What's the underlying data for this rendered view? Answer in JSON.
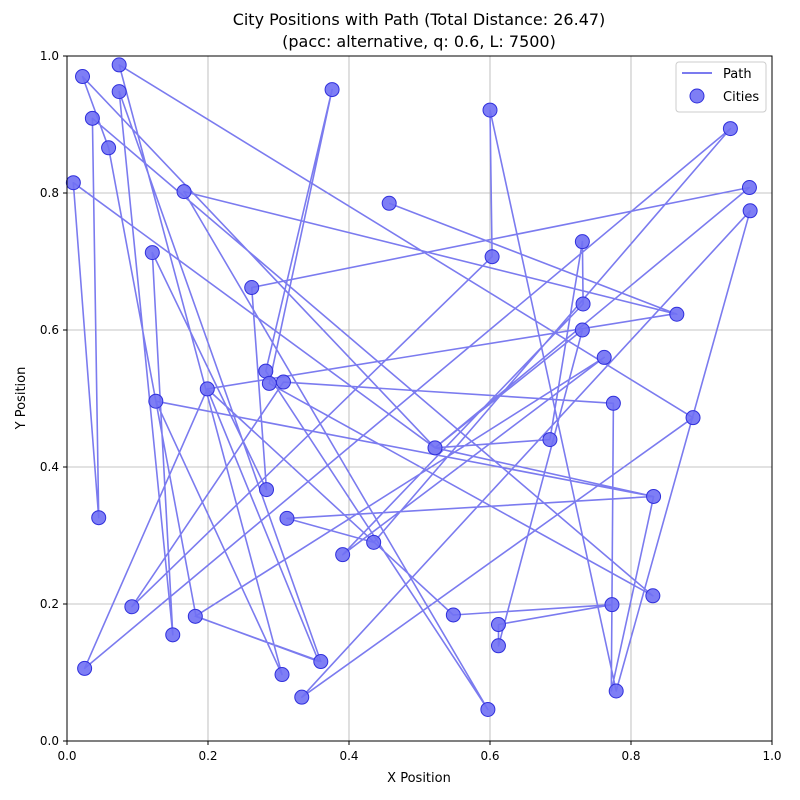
{
  "chart_data": {
    "type": "scatter",
    "title_line1": "City Positions with Path (Total Distance: 26.47)",
    "title_line2": "(pacc: alternative, q: 0.6, L: 7500)",
    "xlabel": "X Position",
    "ylabel": "Y Position",
    "xlim": [
      0,
      1
    ],
    "ylim": [
      0,
      1
    ],
    "xticks": [
      "0.0",
      "0.2",
      "0.4",
      "0.6",
      "0.8",
      "1.0"
    ],
    "yticks": [
      "0.0",
      "0.2",
      "0.4",
      "0.6",
      "0.8",
      "1.0"
    ],
    "grid": true,
    "legend_position": "top-right",
    "legend": {
      "path": "Path",
      "cities": "Cities"
    },
    "colors": {
      "path": "#7b7bef",
      "cities": "#7070f4",
      "city_edge": "#2f2fdc"
    },
    "path": [
      [
        0.457,
        0.785
      ],
      [
        0.865,
        0.623
      ],
      [
        0.166,
        0.802
      ],
      [
        0.597,
        0.046
      ],
      [
        0.282,
        0.54
      ],
      [
        0.376,
        0.951
      ],
      [
        0.287,
        0.522
      ],
      [
        0.831,
        0.212
      ],
      [
        0.036,
        0.909
      ],
      [
        0.045,
        0.326
      ],
      [
        0.009,
        0.815
      ],
      [
        0.522,
        0.428
      ],
      [
        0.685,
        0.44
      ],
      [
        0.731,
        0.729
      ],
      [
        0.732,
        0.638
      ],
      [
        0.391,
        0.272
      ],
      [
        0.762,
        0.56
      ],
      [
        0.182,
        0.182
      ],
      [
        0.36,
        0.116
      ],
      [
        0.074,
        0.948
      ],
      [
        0.15,
        0.155
      ],
      [
        0.121,
        0.713
      ],
      [
        0.283,
        0.367
      ],
      [
        0.262,
        0.662
      ],
      [
        0.968,
        0.808
      ],
      [
        0.522,
        0.428
      ],
      [
        0.731,
        0.6
      ],
      [
        0.612,
        0.139
      ],
      [
        0.612,
        0.17
      ],
      [
        0.773,
        0.199
      ],
      [
        0.548,
        0.184
      ],
      [
        0.199,
        0.514
      ],
      [
        0.025,
        0.106
      ],
      [
        0.941,
        0.894
      ],
      [
        0.435,
        0.29
      ],
      [
        0.312,
        0.325
      ],
      [
        0.832,
        0.357
      ],
      [
        0.126,
        0.496
      ],
      [
        0.305,
        0.097
      ],
      [
        0.074,
        0.987
      ],
      [
        0.888,
        0.472
      ],
      [
        0.333,
        0.064
      ],
      [
        0.969,
        0.774
      ],
      [
        0.779,
        0.073
      ],
      [
        0.6,
        0.921
      ],
      [
        0.603,
        0.707
      ],
      [
        0.092,
        0.196
      ],
      [
        0.307,
        0.524
      ],
      [
        0.775,
        0.493
      ],
      [
        0.772,
        0.073
      ],
      [
        0.832,
        0.357
      ],
      [
        0.522,
        0.428
      ],
      [
        0.022,
        0.97
      ],
      [
        0.059,
        0.866
      ],
      [
        0.183,
        0.182
      ],
      [
        0.357,
        0.116
      ],
      [
        0.199,
        0.514
      ],
      [
        0.864,
        0.624
      ]
    ],
    "cities": [
      [
        0.022,
        0.97
      ],
      [
        0.074,
        0.987
      ],
      [
        0.376,
        0.951
      ],
      [
        0.6,
        0.921
      ],
      [
        0.074,
        0.948
      ],
      [
        0.036,
        0.909
      ],
      [
        0.941,
        0.894
      ],
      [
        0.059,
        0.866
      ],
      [
        0.009,
        0.815
      ],
      [
        0.166,
        0.802
      ],
      [
        0.968,
        0.808
      ],
      [
        0.457,
        0.785
      ],
      [
        0.969,
        0.774
      ],
      [
        0.731,
        0.729
      ],
      [
        0.121,
        0.713
      ],
      [
        0.603,
        0.707
      ],
      [
        0.262,
        0.662
      ],
      [
        0.732,
        0.638
      ],
      [
        0.865,
        0.623
      ],
      [
        0.731,
        0.6
      ],
      [
        0.762,
        0.56
      ],
      [
        0.282,
        0.54
      ],
      [
        0.307,
        0.524
      ],
      [
        0.287,
        0.522
      ],
      [
        0.199,
        0.514
      ],
      [
        0.126,
        0.496
      ],
      [
        0.775,
        0.493
      ],
      [
        0.888,
        0.472
      ],
      [
        0.685,
        0.44
      ],
      [
        0.522,
        0.428
      ],
      [
        0.283,
        0.367
      ],
      [
        0.832,
        0.357
      ],
      [
        0.045,
        0.326
      ],
      [
        0.312,
        0.325
      ],
      [
        0.435,
        0.29
      ],
      [
        0.391,
        0.272
      ],
      [
        0.092,
        0.196
      ],
      [
        0.182,
        0.182
      ],
      [
        0.548,
        0.184
      ],
      [
        0.773,
        0.199
      ],
      [
        0.831,
        0.212
      ],
      [
        0.612,
        0.17
      ],
      [
        0.15,
        0.155
      ],
      [
        0.612,
        0.139
      ],
      [
        0.36,
        0.116
      ],
      [
        0.025,
        0.106
      ],
      [
        0.305,
        0.097
      ],
      [
        0.333,
        0.064
      ],
      [
        0.779,
        0.073
      ],
      [
        0.597,
        0.046
      ]
    ]
  }
}
